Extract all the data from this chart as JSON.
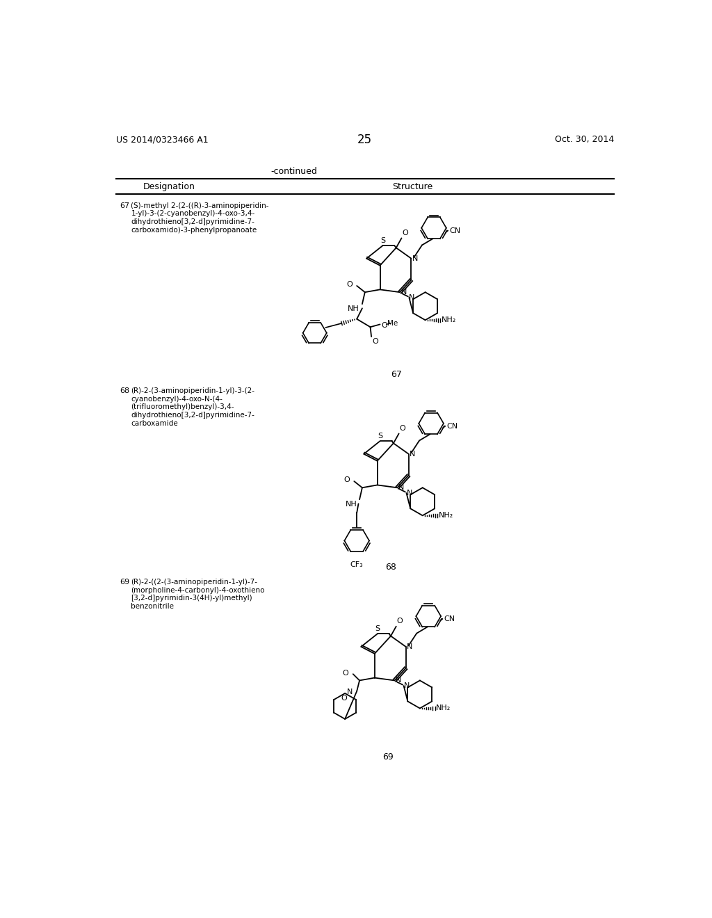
{
  "patent_number": "US 2014/0323466 A1",
  "date": "Oct. 30, 2014",
  "page_number": "25",
  "continued_label": "-continued",
  "col1_header": "Designation",
  "col2_header": "Structure",
  "entry67_num": "67",
  "entry67_name": "(S)-methyl 2-(2-((R)-3-aminopiperidin-\n1-yl)-3-(2-cyanobenzyl)-4-oxo-3,4-\ndihydrothieno[3,2-d]pyrimidine-7-\ncarboxamido)-3-phenylpropanoate",
  "entry68_num": "68",
  "entry68_name": "(R)-2-(3-aminopiperidin-1-yl)-3-(2-\ncyanobenzyl)-4-oxo-N-(4-\n(trifluoromethyl)benzyl)-3,4-\ndihydrothieno[3,2-d]pyrimidine-7-\ncarboxamide",
  "entry69_num": "69",
  "entry69_name": "(R)-2-((2-(3-aminopiperidin-1-yl)-7-\n(morpholine-4-carbonyl)-4-oxothieno\n[3,2-d]pyrimidin-3(4H)-yl)methyl)\nbenzonitrile",
  "bg_color": "#ffffff",
  "text_color": "#000000"
}
